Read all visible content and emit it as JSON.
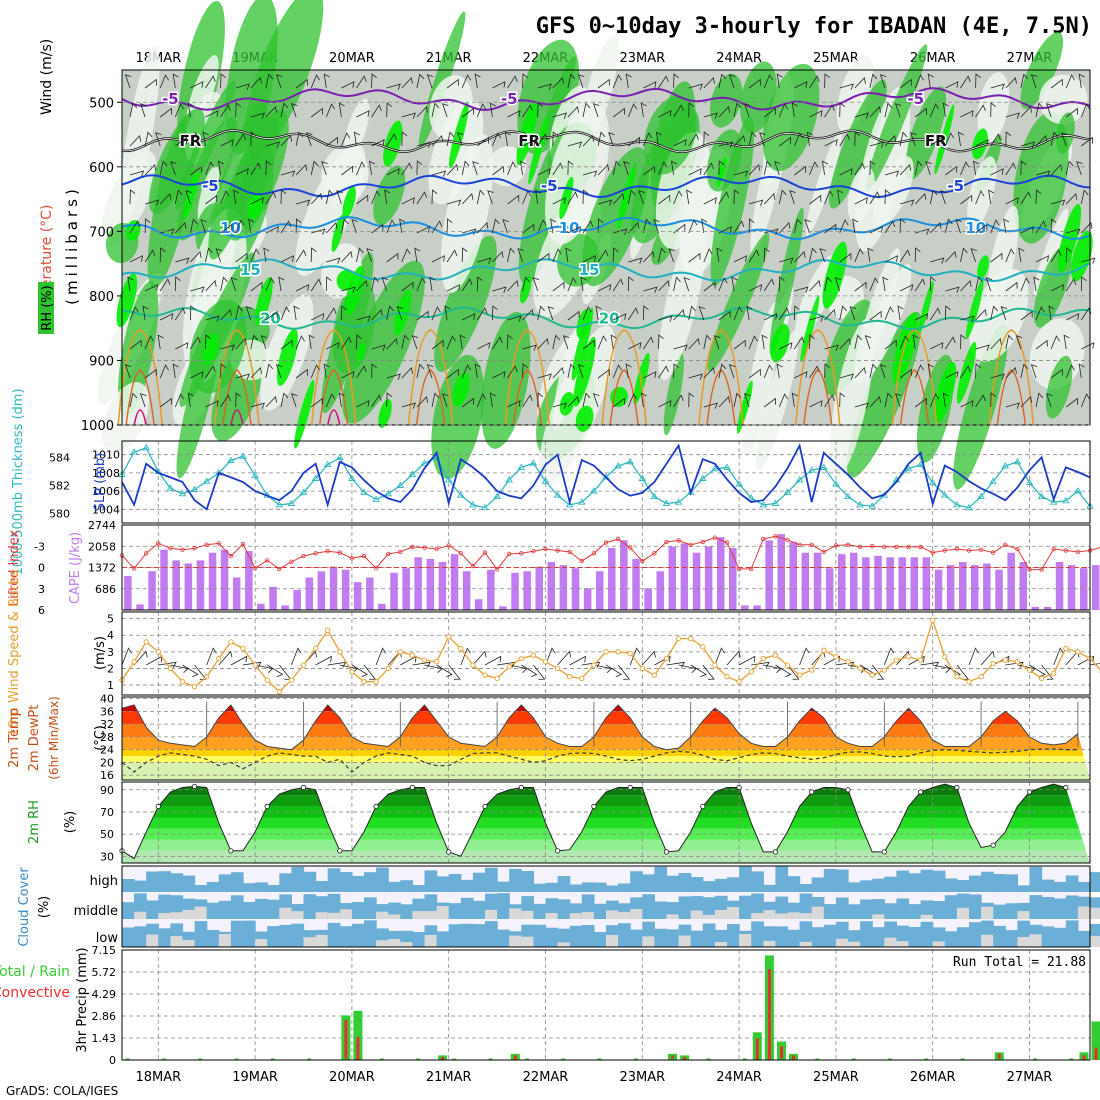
{
  "page": {
    "title": "GFS 0~10day 3-hourly for IBADAN (4E, 7.5N)",
    "credit": "GrADS: COLA/IGES",
    "dates": [
      "18MAR",
      "19MAR",
      "20MAR",
      "21MAR",
      "22MAR",
      "23MAR",
      "24MAR",
      "25MAR",
      "26MAR",
      "27MAR"
    ]
  },
  "colors": {
    "rh_green": "#2fc22f",
    "rh_bright": "#00ee00",
    "rh_gray": "#c7cfc7",
    "slp": "#1a3cc8",
    "thickness": "#30b8c0",
    "lifted": "#e03a3a",
    "cape": "#c07cf0",
    "wind10": "#e8a030",
    "cloud": "#6baed6",
    "cloud_bg": "#f4f2fa",
    "precip_total": "#33cc33",
    "precip_conv": "#e83030"
  },
  "chart_data": [
    {
      "id": "upper_air",
      "type": "heatmap",
      "ylabel_parts": [
        "RH (%)",
        "Temperature (°C)",
        "Wind (m/s)"
      ],
      "yunit": "(millibars)",
      "ylim": [
        1000,
        450
      ],
      "yticks": [
        500,
        600,
        700,
        800,
        900,
        1000
      ],
      "isotherms": [
        {
          "label": "-5",
          "color": "#7a1fb0",
          "level": 495
        },
        {
          "label": "FR",
          "color": "#111111",
          "level": 560
        },
        {
          "label": "-5",
          "color": "#1a44d8",
          "level": 630
        },
        {
          "label": "10",
          "color": "#1a8ee0",
          "level": 695
        },
        {
          "label": "15",
          "color": "#22b0c0",
          "level": 760
        },
        {
          "label": "20",
          "color": "#20b890",
          "level": 835
        }
      ]
    },
    {
      "id": "slp_thickness",
      "type": "line",
      "ylabel_left": "1000-500mb Thickness (dm)",
      "ylabel_right": "SLP (mb)",
      "thickness_ticks": [
        580,
        582,
        584
      ],
      "slp_ticks": [
        1004,
        1006,
        1008,
        1010
      ],
      "ylim_slp": [
        1002.5,
        1011.5
      ],
      "ylim_thick": [
        579.3,
        585.2
      ],
      "slp": [
        1007,
        1004.5,
        1009,
        1008,
        1007.5,
        1007,
        1005,
        1004,
        1008,
        1007.5,
        1007,
        1006,
        1005.5,
        1005,
        1006,
        1008,
        1009,
        1004.5,
        1009.2,
        1008.6,
        1007.2,
        1006,
        1005.2,
        1004.8,
        1006.2,
        1008.5,
        1010.2,
        1004.7,
        1009.5,
        1008.6,
        1007.5,
        1006,
        1005.5,
        1005.2,
        1006.6,
        1008.9,
        1010,
        1004.8,
        1009.4,
        1008.8,
        1007.5,
        1006.2,
        1005.5,
        1005.8,
        1007,
        1009,
        1011,
        1005.8,
        1009.5,
        1009,
        1007.3,
        1005.8,
        1004.8,
        1005,
        1006.5,
        1008.5,
        1011,
        1004.8,
        1010.2,
        1009,
        1007.8,
        1006.4,
        1005.2,
        1005.6,
        1007,
        1009,
        1010.2,
        1004.6,
        1008.8,
        1008.1,
        1007.1,
        1006.3,
        1005.7,
        1005,
        1006.4,
        1008.3,
        1009.7,
        1005.1,
        1008.6,
        1008.1,
        1007.5
      ],
      "thickness": [
        582.8,
        584.4,
        584.7,
        583,
        581.8,
        581.4,
        581.7,
        582.3,
        582.9,
        583.8,
        584.1,
        582.7,
        581.3,
        580.6,
        580.7,
        581.5,
        582.5,
        583.5,
        584,
        582.5,
        581.5,
        581,
        581.4,
        582,
        582.8,
        583.6,
        584,
        582.4,
        581.3,
        580.6,
        580.4,
        581.2,
        582.4,
        583.3,
        583.6,
        582.3,
        581.3,
        580.6,
        580.8,
        581.6,
        582.6,
        583.4,
        583.7,
        582.5,
        581.2,
        580.7,
        580.8,
        581.5,
        582.5,
        583.2,
        583.3,
        582.1,
        581.1,
        580.6,
        580.7,
        581.5,
        582.4,
        583.1,
        583.3,
        582.1,
        581.2,
        580.6,
        580.5,
        581.3,
        582.4,
        583.2,
        583.5,
        582.2,
        581.3,
        580.6,
        580.4,
        581.2,
        582.3,
        583.4,
        583.7,
        582.2,
        581.2,
        580.8,
        580.9,
        581.6,
        580.5
      ]
    },
    {
      "id": "cape_li",
      "type": "bar",
      "ylabel_left": "Lifted Index",
      "ylabel_right": "CAPE (J/kg)",
      "li_ticks": [
        "-3",
        "0",
        "3",
        "6"
      ],
      "li_tick_values": [
        -3,
        0,
        3,
        6
      ],
      "cape_ticks": [
        "686",
        "1372",
        "2058",
        "2744"
      ],
      "ylim_cape": [
        0,
        2744
      ],
      "ylim_li": [
        6,
        -6
      ],
      "cape": [
        1100,
        180,
        1250,
        1950,
        1600,
        1500,
        1600,
        1850,
        1950,
        1050,
        1900,
        200,
        750,
        150,
        650,
        1050,
        1250,
        1400,
        1300,
        900,
        1050,
        200,
        1200,
        1350,
        1700,
        1650,
        1550,
        1800,
        1250,
        350,
        1300,
        120,
        1200,
        1250,
        1400,
        1550,
        1450,
        1350,
        700,
        1250,
        2000,
        2250,
        1650,
        700,
        1250,
        2050,
        2150,
        1850,
        2050,
        2350,
        2000,
        150,
        150,
        2250,
        2450,
        2200,
        1850,
        1850,
        1350,
        1800,
        1850,
        1700,
        1750,
        1700,
        1700,
        1700,
        1700,
        1300,
        1450,
        1550,
        1450,
        1500,
        1300,
        1850,
        1550,
        100,
        100,
        1550,
        1450,
        1350,
        1450,
        1700,
        1950,
        1650,
        1250,
        1750,
        1950,
        1850
      ]
    },
    {
      "id": "wind10m",
      "type": "line",
      "ylabel": "10m Wind Speed & Barbs",
      "yunit": "(m/s)",
      "yticks": [
        1,
        2,
        3,
        4,
        5
      ],
      "ylim": [
        0.4,
        5.4
      ],
      "speed": [
        1.3,
        2.4,
        3.6,
        3.0,
        2.0,
        1.2,
        0.9,
        1.5,
        2.6,
        3.6,
        3.2,
        2.2,
        1.3,
        0.6,
        1.3,
        2.2,
        3.2,
        4.3,
        3.0,
        1.8,
        1.2,
        1.2,
        2.0,
        3.0,
        2.8,
        2.5,
        2.4,
        3.9,
        3.2,
        2.2,
        1.6,
        1.4,
        2.1,
        2.6,
        2.8,
        2.4,
        2.0,
        1.5,
        1.4,
        2.2,
        3.0,
        3.0,
        2.9,
        2.0,
        1.6,
        2.6,
        3.8,
        3.8,
        3.3,
        2.2,
        1.5,
        1.2,
        1.8,
        2.6,
        2.8,
        2.2,
        1.6,
        1.9,
        3.1,
        2.7,
        2.4,
        2.0,
        1.6,
        1.9,
        2.5,
        2.7,
        2.5,
        4.9,
        2.7,
        1.5,
        1.2,
        1.5,
        2.3,
        2.5,
        2.4,
        1.9,
        1.4,
        1.7,
        3.2,
        3.0,
        2.6,
        1.8,
        2.0,
        1.6,
        2.5
      ]
    },
    {
      "id": "temp2m",
      "type": "area",
      "ylabel_parts": [
        "2m Temp",
        "2m DewPt",
        "(6hr Min/Max)"
      ],
      "yunit": "(°C)",
      "yticks": [
        16,
        20,
        24,
        28,
        32,
        36,
        40
      ],
      "ylim": [
        14.5,
        40.5
      ],
      "temp": [
        37,
        38,
        31,
        27,
        26,
        25.5,
        25,
        28,
        34,
        38,
        32,
        27,
        25,
        24.5,
        24,
        27,
        33,
        38,
        34,
        28,
        26,
        25.5,
        25,
        28,
        34,
        38,
        33,
        28,
        26,
        25.5,
        25,
        28,
        34,
        38,
        34,
        28,
        26,
        25,
        25,
        28,
        34,
        38,
        34,
        28,
        25,
        24,
        24.5,
        28,
        33,
        37,
        34,
        29,
        26,
        25,
        25,
        28,
        33,
        37,
        34,
        28,
        26,
        25,
        25,
        28,
        33,
        37,
        33,
        27,
        25,
        25,
        25,
        28,
        33,
        36,
        33,
        28,
        26,
        25.5,
        26,
        29
      ],
      "dewpoint": [
        20,
        17,
        20,
        22,
        23,
        22.5,
        22,
        21,
        19,
        20,
        18,
        20,
        22,
        23,
        22.5,
        22,
        22,
        20,
        21,
        17,
        20,
        22,
        23,
        22.5,
        22,
        20,
        19,
        19,
        21,
        22.8,
        23,
        23,
        22,
        21,
        20,
        20.5,
        22,
        22.8,
        23,
        22.8,
        22,
        21,
        20.5,
        21,
        22,
        23,
        23.5,
        23.2,
        22.2,
        21,
        20.5,
        21.5,
        22.5,
        23,
        22.8,
        22,
        21.5,
        21,
        21.5,
        22.5,
        23.2,
        23.3,
        22.8,
        22,
        21.8,
        22,
        23,
        23.8,
        24,
        23.8,
        23.5,
        23.2,
        23,
        23.2,
        23.5,
        24,
        24.2,
        24.2,
        24,
        24
      ]
    },
    {
      "id": "rh2m",
      "type": "area",
      "ylabel": "2m RH",
      "yunit": "(%)",
      "yticks": [
        30,
        50,
        70,
        90
      ],
      "ylim": [
        24,
        97
      ],
      "rh": [
        35,
        28,
        52,
        75,
        88,
        92,
        93,
        92,
        60,
        35,
        35,
        52,
        75,
        86,
        90,
        92,
        90,
        60,
        35,
        35,
        52,
        75,
        86,
        90,
        92,
        92,
        60,
        34,
        30,
        52,
        75,
        86,
        90,
        92,
        92,
        60,
        35,
        36,
        52,
        75,
        88,
        92,
        92,
        92,
        60,
        34,
        35,
        52,
        75,
        88,
        92,
        92,
        60,
        34,
        34,
        52,
        75,
        88,
        92,
        92,
        90,
        60,
        34,
        34,
        52,
        75,
        88,
        92,
        95,
        92,
        60,
        38,
        40,
        52,
        75,
        88,
        92,
        95,
        92
      ]
    },
    {
      "id": "cloud",
      "type": "area",
      "ylabel": "Cloud Cover",
      "yunit": "(%)",
      "levels": [
        "high",
        "middle",
        "low"
      ]
    },
    {
      "id": "precip",
      "type": "bar",
      "ylabel_left": "Total / Rain",
      "ylabel_left2": "Convective",
      "ylabel": "3hr Precip (mm)",
      "yticks": [
        "0",
        "1.43",
        "2.86",
        "4.29",
        "5.72",
        "7.15"
      ],
      "ylim": [
        0,
        7.15
      ],
      "run_total_label": "Run Total = 21.88",
      "bars": [
        {
          "i": 18,
          "total": 2.9,
          "conv": 2.6
        },
        {
          "i": 19,
          "total": 3.2,
          "conv": 1.5
        },
        {
          "i": 26,
          "total": 0.3,
          "conv": 0.2
        },
        {
          "i": 32,
          "total": 0.4,
          "conv": 0.3
        },
        {
          "i": 45,
          "total": 0.4,
          "conv": 0.3
        },
        {
          "i": 46,
          "total": 0.3,
          "conv": 0.2
        },
        {
          "i": 52,
          "total": 1.8,
          "conv": 1.4
        },
        {
          "i": 53,
          "total": 6.8,
          "conv": 5.9
        },
        {
          "i": 54,
          "total": 1.2,
          "conv": 0.9
        },
        {
          "i": 55,
          "total": 0.4,
          "conv": 0.3
        },
        {
          "i": 72,
          "total": 0.5,
          "conv": 0.4
        },
        {
          "i": 79,
          "total": 0.5,
          "conv": 0.3
        },
        {
          "i": 80,
          "total": 2.5,
          "conv": 0.8
        },
        {
          "i": 81,
          "total": 0.6,
          "conv": 0.4
        }
      ]
    }
  ]
}
